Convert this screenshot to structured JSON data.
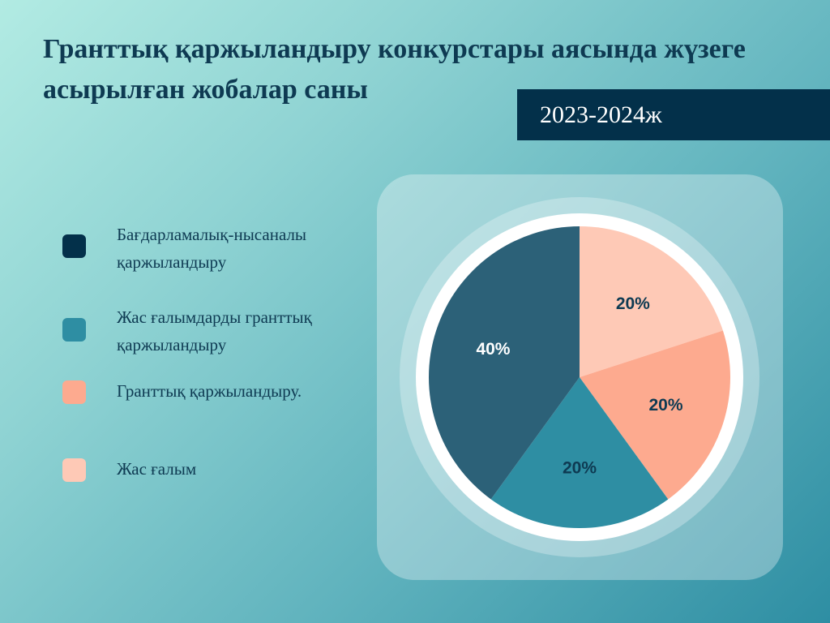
{
  "title": "Гранттық қаржыландыру конкурстары аясында жүзеге асырылған жобалар саны",
  "period": "2023-2024ж",
  "legend": [
    {
      "label": "Бағдарламалық-нысаналы қаржыландыру",
      "color": "#03304a"
    },
    {
      "label": "Жас ғалымдарды гранттық қаржыландыру",
      "color": "#2e8ea3"
    },
    {
      "label": "Гранттық қаржыландыру.",
      "color": "#fdaa8f"
    },
    {
      "label": "Жас ғалым",
      "color": "#fec9b6"
    }
  ],
  "chart_data": {
    "type": "pie",
    "title": "Гранттық қаржыландыру конкурстары аясында жүзеге асырылған жобалар саны",
    "subtitle": "2023-2024ж",
    "unit": "%",
    "slices": [
      {
        "label": "Жас ғалым",
        "value": 20,
        "color": "#fec9b6",
        "value_label": "20%",
        "label_color": "#0e3a52"
      },
      {
        "label": "Гранттық қаржыландыру.",
        "value": 20,
        "color": "#fdaa8f",
        "value_label": "20%",
        "label_color": "#0e3a52"
      },
      {
        "label": "Жас ғалымдарды гранттық қаржыландыру",
        "value": 20,
        "color": "#2e8ea3",
        "value_label": "20%",
        "label_color": "#0e3a52"
      },
      {
        "label": "Бағдарламалық-нысаналы қаржыландыру",
        "value": 40,
        "color": "#2c6178",
        "value_label": "40%",
        "label_color": "#ffffff"
      }
    ],
    "legend_position": "left"
  }
}
